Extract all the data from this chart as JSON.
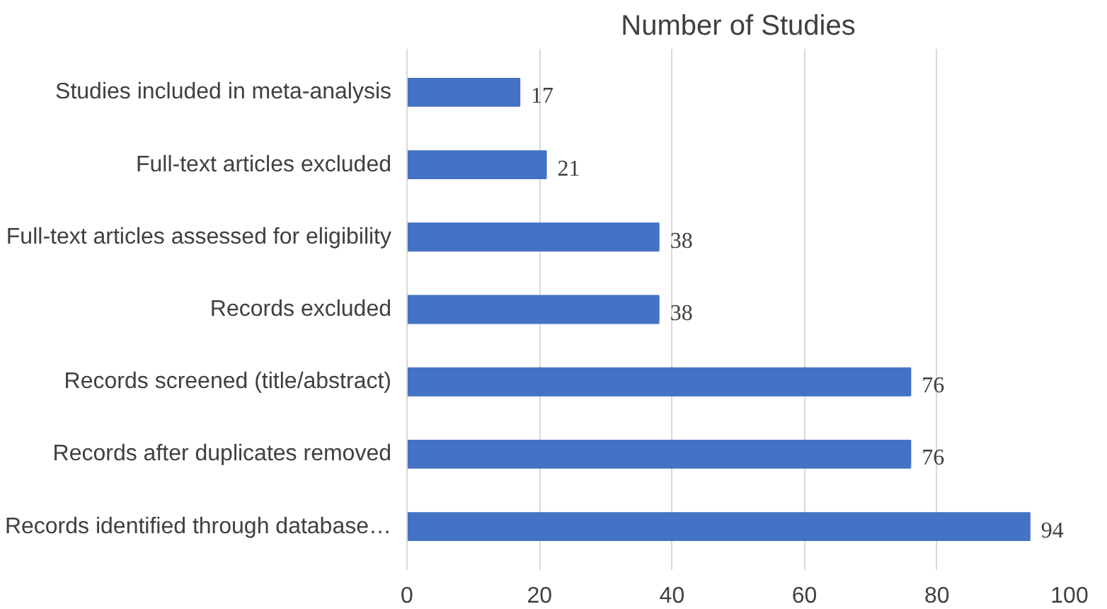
{
  "chart_data": {
    "type": "bar",
    "orientation": "horizontal",
    "title": "Number of Studies",
    "categories": [
      "Studies included in meta-analysis",
      "Full-text articles excluded",
      "Full-text articles assessed for eligibility",
      "Records excluded",
      "Records screened (title/abstract)",
      "Records after duplicates removed",
      "Records identified through database…"
    ],
    "values": [
      17,
      21,
      38,
      38,
      76,
      76,
      94
    ],
    "color": "#4472c4",
    "xlim": [
      0,
      100
    ],
    "xticks": [
      0,
      20,
      40,
      60,
      80,
      100
    ],
    "grid": "x",
    "data_labels": true
  }
}
